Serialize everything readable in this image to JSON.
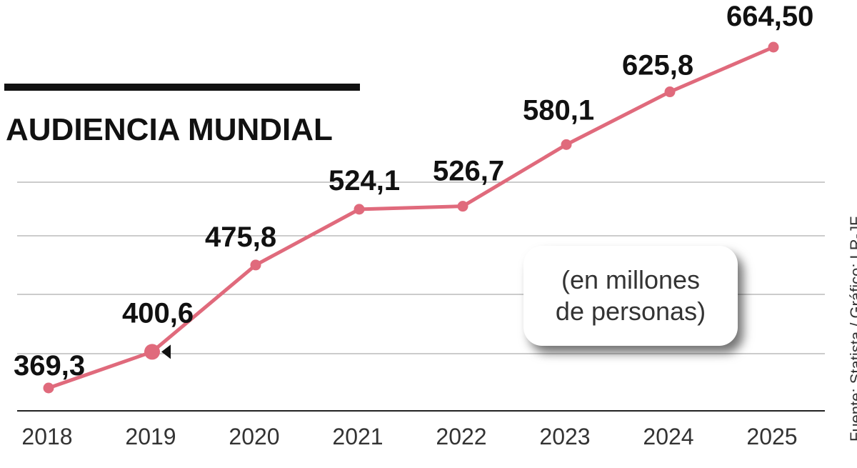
{
  "chart_data": {
    "type": "line",
    "title": "AUDIENCIA MUNDIAL",
    "note": [
      "(en millones",
      "de personas)"
    ],
    "source": "Fuente: Statista / Gráfico: LR-JF",
    "categories": [
      "2018",
      "2019",
      "2020",
      "2021",
      "2022",
      "2023",
      "2024",
      "2025"
    ],
    "value_labels": [
      "369,3",
      "400,6",
      "475,8",
      "524,1",
      "526,7",
      "580,1",
      "625,8",
      "664,50"
    ],
    "values": [
      369.3,
      400.6,
      475.8,
      524.1,
      526.7,
      580.1,
      625.8,
      664.5
    ],
    "ylim": [
      350,
      680
    ],
    "xlabel": "",
    "ylabel": "",
    "grid": true,
    "highlight_index": 1,
    "line_color": "#e06a7c",
    "grid_color": "#9a9a9a",
    "text_color": "#111111"
  }
}
